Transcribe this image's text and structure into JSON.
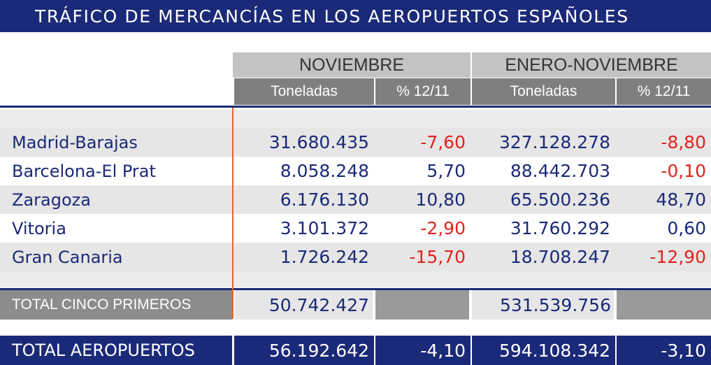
{
  "title": "TRÁFICO DE MERCANCÍAS EN LOS AEROPUERTOS ESPAÑOLES",
  "header": {
    "groups": [
      "NOVIEMBRE",
      "ENERO-NOVIEMBRE"
    ],
    "columns": [
      "Toneladas",
      "% 12/11",
      "Toneladas",
      "% 12/11"
    ]
  },
  "rows": [
    [
      "Madrid-Barajas",
      "31.680.435",
      "-7,60",
      "327.128.278",
      "-8,80"
    ],
    [
      "Barcelona-El Prat",
      "8.058.248",
      "5,70",
      "88.442.703",
      "-0,10"
    ],
    [
      "Zaragoza",
      "6.176.130",
      "10,80",
      "65.500.236",
      "48,70"
    ],
    [
      "Vitoria",
      "3.101.372",
      "-2,90",
      "31.760.292",
      "0,60"
    ],
    [
      "Gran Canaria",
      "1.726.242",
      "-15,70",
      "18.708.247",
      "-12,90"
    ]
  ],
  "total_cinco": {
    "label": "TOTAL CINCO PRIMEROS",
    "noviembre": "50.742.427",
    "enero_noviembre": "531.539.756"
  },
  "total": [
    "TOTAL AEROPUERTOS",
    "56.192.642",
    "-4,10",
    "594.108.342",
    "-3,10"
  ]
}
